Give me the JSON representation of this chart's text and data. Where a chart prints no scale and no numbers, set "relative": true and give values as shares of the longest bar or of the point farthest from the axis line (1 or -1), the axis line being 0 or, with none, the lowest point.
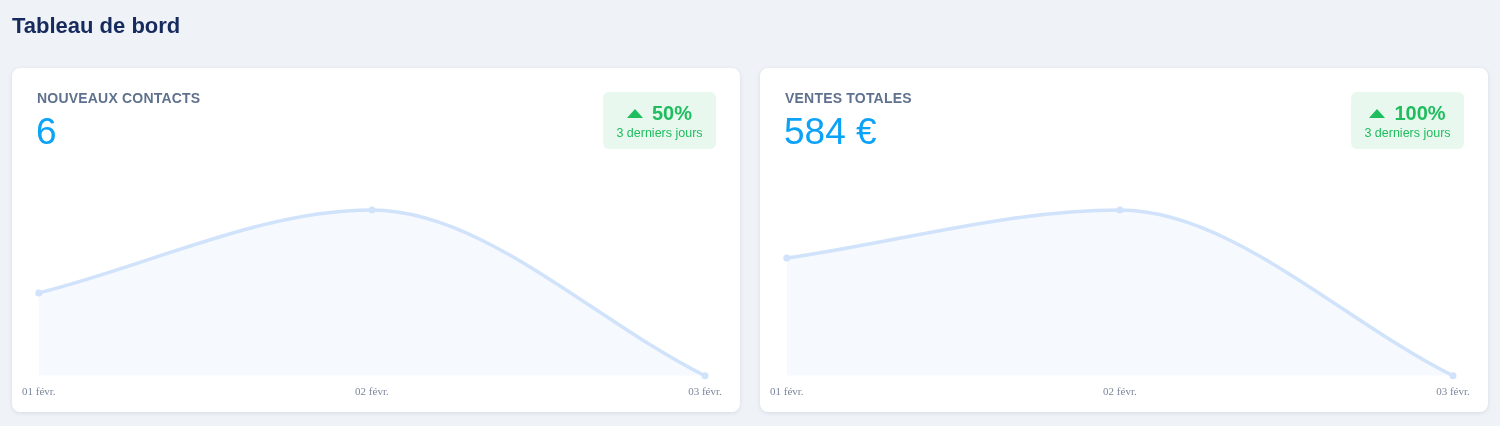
{
  "chart_data": [
    {
      "type": "other",
      "title": "Tableau de bord"
    },
    {
      "type": "area",
      "title": "NOUVEAUX CONTACTS",
      "annotations": [
        "6",
        "50%",
        "3 derniers jours"
      ],
      "categories": [
        "01 févr.",
        "02 févr.",
        "03 févr."
      ],
      "values": [
        0.5,
        1,
        0
      ],
      "relative": true,
      "color": "#d0e3fb",
      "marker": "circle"
    },
    {
      "type": "area",
      "title": "VENTES TOTALES",
      "annotations": [
        "584 €",
        "100%",
        "3 derniers jours"
      ],
      "categories": [
        "01 févr.",
        "02 févr.",
        "03 févr."
      ],
      "values": [
        0.71,
        1,
        0
      ],
      "relative": true,
      "color": "#d0e3fb",
      "marker": "circle"
    }
  ]
}
